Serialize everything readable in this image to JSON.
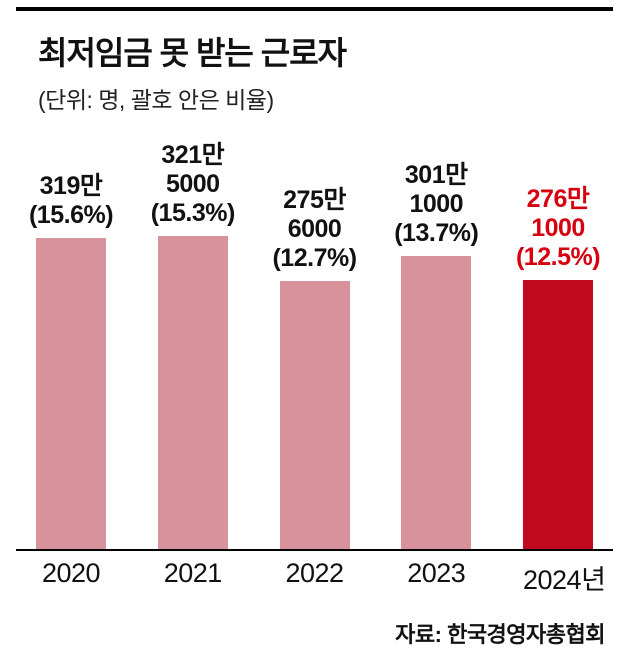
{
  "header": {
    "title": "최저임금 못 받는 근로자",
    "subtitle": "(단위: 명, 괄호 안은 비율)"
  },
  "source": "자료: 한국경영자총협회",
  "colors": {
    "bar": "#d7929b",
    "bar_highlight": "#c20a1e",
    "label": "#111111",
    "label_highlight": "#d7000f"
  },
  "chart_data": {
    "type": "bar",
    "title": "최저임금 못 받는 근로자",
    "unit_note": "(단위: 명, 괄호 안은 비율)",
    "categories": [
      "2020",
      "2021",
      "2022",
      "2023",
      "2024년"
    ],
    "values": [
      3190000,
      3215000,
      2756000,
      3011000,
      2761000
    ],
    "percentages": [
      15.6,
      15.3,
      12.7,
      13.7,
      12.5
    ],
    "value_labels": [
      [
        "319만",
        "(15.6%)"
      ],
      [
        "321만",
        "5000",
        "(15.3%)"
      ],
      [
        "275만",
        "6000",
        "(12.7%)"
      ],
      [
        "301만",
        "1000",
        "(13.7%)"
      ],
      [
        "276만",
        "1000",
        "(12.5%)"
      ]
    ],
    "highlight_index": 4,
    "ylim": [
      0,
      3215000
    ],
    "grid": false,
    "legend": "none"
  }
}
